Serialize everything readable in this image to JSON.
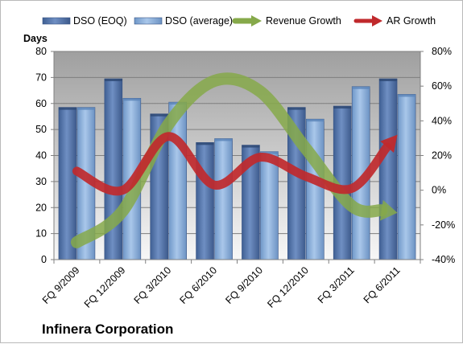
{
  "company_label": "Infinera Corporation",
  "chart_data": {
    "type": "bar",
    "title": "",
    "categories": [
      "FQ 9/2009",
      "FQ 12/2009",
      "FQ 3/2010",
      "FQ 6/2010",
      "FQ 9/2010",
      "FQ 12/2010",
      "FQ 3/2011",
      "FQ 6/2011"
    ],
    "ylabel": "Days",
    "xlabel": "",
    "ylim": [
      0,
      80
    ],
    "y_ticks": [
      0,
      10,
      20,
      30,
      40,
      50,
      60,
      70,
      80
    ],
    "y2lim": [
      -40,
      80
    ],
    "y2_ticks": [
      -40,
      -20,
      0,
      20,
      40,
      60,
      80
    ],
    "y2_tick_labels": [
      "-40%",
      "-20%",
      "0%",
      "20%",
      "40%",
      "60%",
      "80%"
    ],
    "grid": true,
    "legend_position": "top",
    "series": [
      {
        "name": "DSO (EOQ)",
        "kind": "bar",
        "axis": "left",
        "color": "#5b7bb0",
        "values": [
          58.5,
          69.5,
          56,
          45,
          44,
          58.5,
          59,
          69.5
        ]
      },
      {
        "name": "DSO (average)",
        "kind": "bar",
        "axis": "left",
        "color": "#8eb2dd",
        "values": [
          58.5,
          62,
          60.5,
          46.5,
          41.5,
          54,
          66.5,
          63.5
        ]
      },
      {
        "name": "Revenue Growth",
        "kind": "line",
        "axis": "right",
        "color": "#86a94a",
        "values": [
          -30,
          -12,
          38,
          63,
          57,
          24,
          -9,
          -13
        ]
      },
      {
        "name": "AR Growth",
        "kind": "line",
        "axis": "right",
        "color": "#c0292c",
        "values": [
          11,
          0,
          31,
          3,
          19,
          8,
          1,
          32
        ]
      }
    ]
  }
}
